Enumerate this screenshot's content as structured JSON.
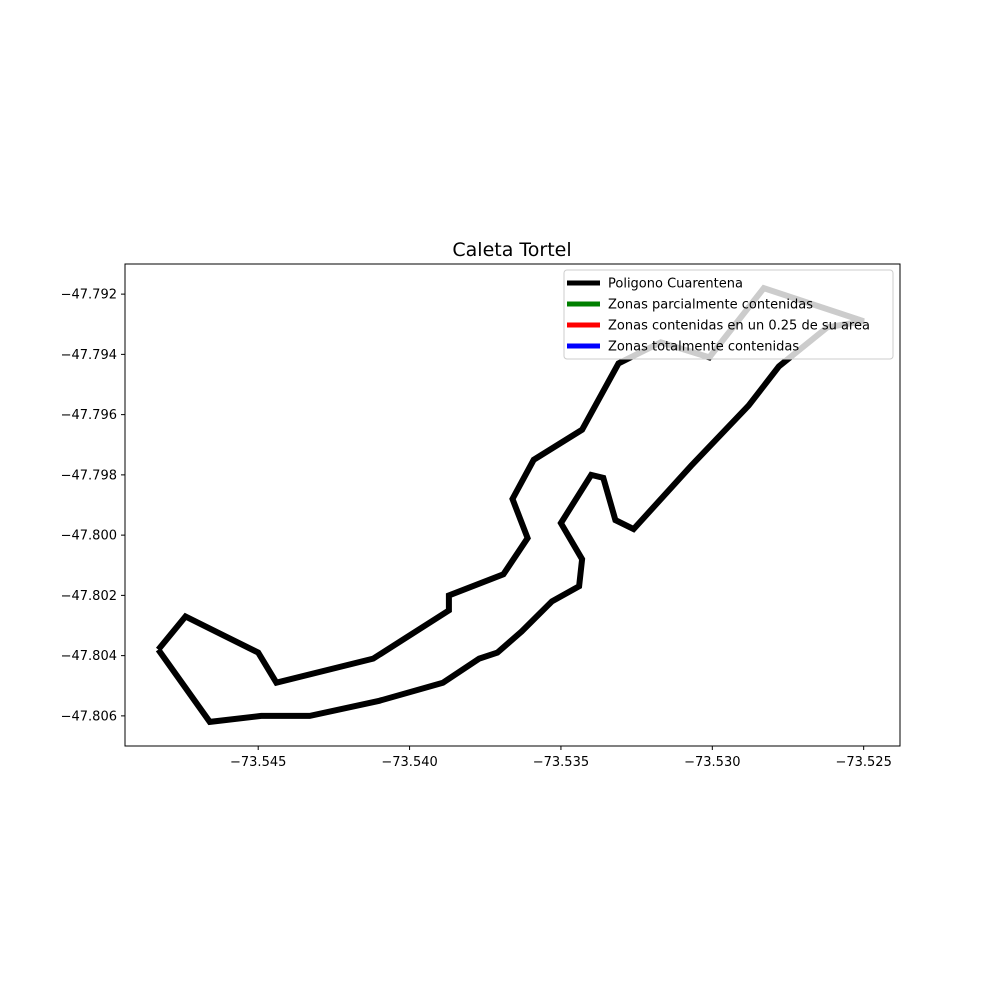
{
  "chart_data": {
    "type": "line",
    "title": "Caleta Tortel",
    "xlabel": "",
    "ylabel": "",
    "xlim": [
      -73.5494,
      -73.5238
    ],
    "ylim": [
      -47.807,
      -47.791
    ],
    "xticks": [
      -73.545,
      -73.54,
      -73.535,
      -73.53,
      -73.525
    ],
    "xtick_labels": [
      "−73.545",
      "−73.540",
      "−73.535",
      "−73.530",
      "−73.525"
    ],
    "yticks": [
      -47.792,
      -47.794,
      -47.796,
      -47.798,
      -47.8,
      -47.802,
      -47.804,
      -47.806
    ],
    "ytick_labels": [
      "−47.792",
      "−47.794",
      "−47.796",
      "−47.798",
      "−47.800",
      "−47.802",
      "−47.804",
      "−47.806"
    ],
    "grid": false,
    "legend_position": "top-right",
    "series": [
      {
        "name": "Poligono Cuarentena",
        "color": "#000000",
        "points": [
          [
            -73.5483,
            -47.8038
          ],
          [
            -73.5474,
            -47.8027
          ],
          [
            -73.545,
            -47.8039
          ],
          [
            -73.5444,
            -47.8049
          ],
          [
            -73.5412,
            -47.8041
          ],
          [
            -73.5387,
            -47.8025
          ],
          [
            -73.5387,
            -47.802
          ],
          [
            -73.5369,
            -47.8013
          ],
          [
            -73.5361,
            -47.8001
          ],
          [
            -73.5366,
            -47.7988
          ],
          [
            -73.5359,
            -47.7975
          ],
          [
            -73.5343,
            -47.7965
          ],
          [
            -73.5331,
            -47.7943
          ],
          [
            -73.5317,
            -47.7936
          ],
          [
            -73.5301,
            -47.7941
          ],
          [
            -73.5283,
            -47.7918
          ],
          [
            -73.525,
            -47.7929
          ],
          [
            -73.5262,
            -47.7931
          ],
          [
            -73.5278,
            -47.7944
          ],
          [
            -73.5288,
            -47.7957
          ],
          [
            -73.5307,
            -47.7977
          ],
          [
            -73.5326,
            -47.7998
          ],
          [
            -73.5332,
            -47.7995
          ],
          [
            -73.5336,
            -47.7981
          ],
          [
            -73.534,
            -47.798
          ],
          [
            -73.535,
            -47.7996
          ],
          [
            -73.5343,
            -47.8008
          ],
          [
            -73.5344,
            -47.8017
          ],
          [
            -73.5353,
            -47.8022
          ],
          [
            -73.5363,
            -47.8032
          ],
          [
            -73.5371,
            -47.8039
          ],
          [
            -73.5377,
            -47.8041
          ],
          [
            -73.5389,
            -47.8049
          ],
          [
            -73.541,
            -47.8055
          ],
          [
            -73.5433,
            -47.806
          ],
          [
            -73.5449,
            -47.806
          ],
          [
            -73.5466,
            -47.8062
          ],
          [
            -73.5483,
            -47.8038
          ]
        ]
      },
      {
        "name": "Zonas parcialmente contenidas",
        "color": "#008000",
        "points": []
      },
      {
        "name": "Zonas contenidas en un 0.25 de su area",
        "color": "#ff0000",
        "points": []
      },
      {
        "name": "Zonas totalmente contenidas",
        "color": "#0000ff",
        "points": []
      }
    ]
  }
}
